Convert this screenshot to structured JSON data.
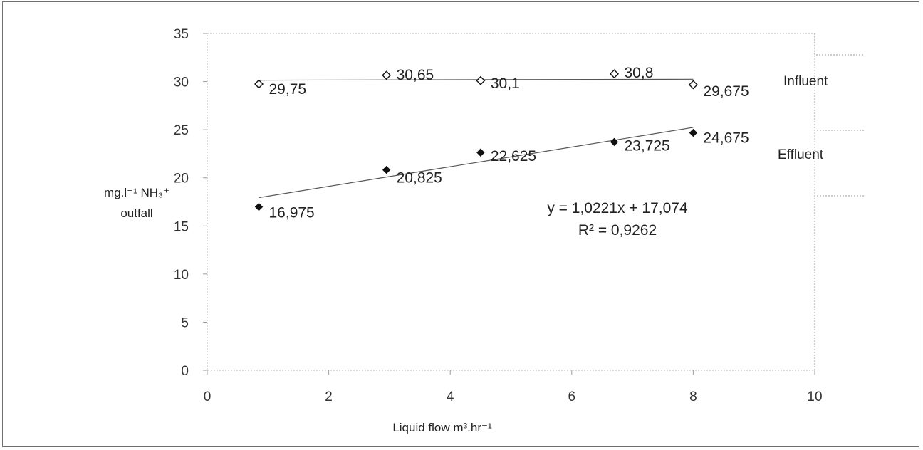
{
  "chart_data": {
    "type": "scatter",
    "xlabel": "Liquid flow m³.hr⁻¹",
    "ylabel_lines": [
      "mg.l⁻¹ NH₃⁺",
      "outfall"
    ],
    "xlim": [
      0,
      10
    ],
    "ylim": [
      0,
      35
    ],
    "x_ticks": [
      "0",
      "2",
      "4",
      "6",
      "8",
      "10"
    ],
    "y_ticks": [
      "0",
      "5",
      "10",
      "15",
      "20",
      "25",
      "30",
      "35"
    ],
    "series": [
      {
        "name": "Influent",
        "marker": "open-diamond",
        "trendline": true,
        "x": [
          0.85,
          2.95,
          4.5,
          6.7,
          8.0
        ],
        "y": [
          29.75,
          30.65,
          30.1,
          30.8,
          29.675
        ],
        "labels": [
          "29,75",
          "30,65",
          "30,1",
          "30,8",
          "29,675"
        ]
      },
      {
        "name": "Effluent",
        "marker": "filled-diamond",
        "trendline": true,
        "x": [
          0.85,
          2.95,
          4.5,
          6.7,
          8.0
        ],
        "y": [
          16.975,
          20.825,
          22.625,
          23.725,
          24.675
        ],
        "labels": [
          "16,975",
          "20,825",
          "22,625",
          "23,725",
          "24,675"
        ]
      }
    ],
    "equation": "y = 1,0221x + 17,074",
    "r_squared": "R² = 0,9262",
    "legend_position": "right"
  },
  "colors": {
    "marker": "#111111",
    "line": "#555555",
    "axis": "#9a9a9a"
  }
}
